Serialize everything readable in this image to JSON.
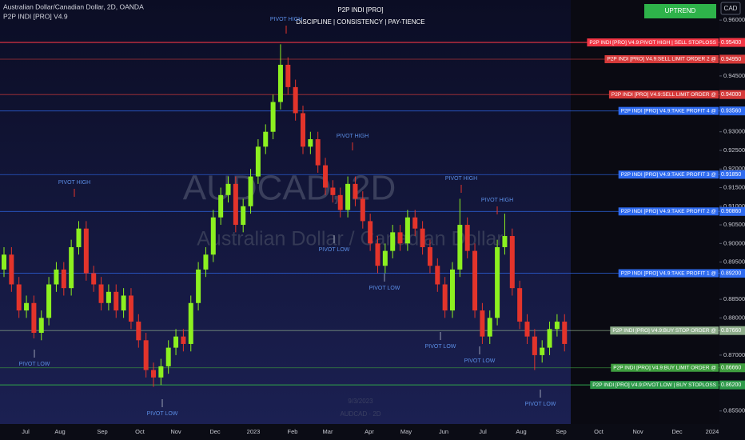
{
  "chart_data": {
    "type": "candlestick",
    "symbol_title": "Australian Dollar/Canadian Dollar, 2D, OANDA",
    "indicator_name": "P2P INDI [PRO] V4.9",
    "title": "P2P INDI [PRO]",
    "subtitle": "DISCIPLINE  |  CONSISTENCY  |  PAY-TIENCE",
    "trend_badge": "UPTREND",
    "currency": "CAD",
    "watermark": "AUDCAD, 2D",
    "watermark_sub": "Australian Dollar / Canadian Dollar",
    "watermark_date": "9/3/2023",
    "watermark_code": "AUDCAD · 2D",
    "up_color": "#8cf020",
    "down_color": "#e3342b",
    "ylim": [
      0.8515,
      0.9654
    ],
    "yticks": [
      {
        "value": 0.96,
        "label": "0.96000"
      },
      {
        "value": 0.945,
        "label": "0.94500"
      },
      {
        "value": 0.93,
        "label": "0.93000"
      },
      {
        "value": 0.925,
        "label": "0.92500"
      },
      {
        "value": 0.92,
        "label": "0.92000"
      },
      {
        "value": 0.915,
        "label": "0.91500"
      },
      {
        "value": 0.91,
        "label": "0.91000"
      },
      {
        "value": 0.905,
        "label": "0.90500"
      },
      {
        "value": 0.9,
        "label": "0.90000"
      },
      {
        "value": 0.895,
        "label": "0.89500"
      },
      {
        "value": 0.885,
        "label": "0.88500"
      },
      {
        "value": 0.88,
        "label": "0.88000"
      },
      {
        "value": 0.87,
        "label": "0.87000"
      },
      {
        "value": 0.855,
        "label": "0.85500"
      }
    ],
    "x_labels": [
      "Jul",
      "Aug",
      "Sep",
      "Oct",
      "Nov",
      "Dec",
      "2023",
      "Feb",
      "Mar",
      "Apr",
      "May",
      "Jun",
      "Jul",
      "Aug",
      "Sep",
      "Oct",
      "Nov",
      "Dec",
      "2024"
    ],
    "candles": [
      [
        0.893,
        0.899,
        0.891,
        0.897
      ],
      [
        0.897,
        0.899,
        0.887,
        0.889
      ],
      [
        0.889,
        0.891,
        0.88,
        0.882
      ],
      [
        0.882,
        0.886,
        0.88,
        0.884
      ],
      [
        0.884,
        0.886,
        0.8745,
        0.876
      ],
      [
        0.876,
        0.882,
        0.874,
        0.88
      ],
      [
        0.88,
        0.891,
        0.878,
        0.889
      ],
      [
        0.889,
        0.895,
        0.887,
        0.893
      ],
      [
        0.893,
        0.895,
        0.886,
        0.888
      ],
      [
        0.888,
        0.901,
        0.886,
        0.899
      ],
      [
        0.899,
        0.906,
        0.897,
        0.904
      ],
      [
        0.904,
        0.906,
        0.89,
        0.892
      ],
      [
        0.892,
        0.894,
        0.887,
        0.889
      ],
      [
        0.889,
        0.891,
        0.882,
        0.884
      ],
      [
        0.884,
        0.889,
        0.882,
        0.887
      ],
      [
        0.887,
        0.889,
        0.88,
        0.882
      ],
      [
        0.882,
        0.888,
        0.88,
        0.886
      ],
      [
        0.886,
        0.888,
        0.877,
        0.879
      ],
      [
        0.879,
        0.881,
        0.872,
        0.874
      ],
      [
        0.874,
        0.876,
        0.864,
        0.866
      ],
      [
        0.866,
        0.868,
        0.8615,
        0.864
      ],
      [
        0.864,
        0.869,
        0.862,
        0.867
      ],
      [
        0.867,
        0.874,
        0.865,
        0.872
      ],
      [
        0.872,
        0.877,
        0.87,
        0.875
      ],
      [
        0.875,
        0.877,
        0.871,
        0.873
      ],
      [
        0.873,
        0.886,
        0.871,
        0.884
      ],
      [
        0.884,
        0.895,
        0.882,
        0.893
      ],
      [
        0.893,
        0.899,
        0.891,
        0.897
      ],
      [
        0.897,
        0.909,
        0.895,
        0.907
      ],
      [
        0.907,
        0.915,
        0.905,
        0.913
      ],
      [
        0.913,
        0.918,
        0.911,
        0.916
      ],
      [
        0.916,
        0.918,
        0.903,
        0.905
      ],
      [
        0.905,
        0.912,
        0.903,
        0.91
      ],
      [
        0.91,
        0.92,
        0.908,
        0.918
      ],
      [
        0.918,
        0.928,
        0.916,
        0.926
      ],
      [
        0.926,
        0.932,
        0.924,
        0.93
      ],
      [
        0.93,
        0.94,
        0.928,
        0.938
      ],
      [
        0.938,
        0.9535,
        0.936,
        0.948
      ],
      [
        0.948,
        0.95,
        0.94,
        0.942
      ],
      [
        0.942,
        0.944,
        0.933,
        0.935
      ],
      [
        0.935,
        0.937,
        0.924,
        0.926
      ],
      [
        0.926,
        0.93,
        0.924,
        0.928
      ],
      [
        0.928,
        0.93,
        0.919,
        0.921
      ],
      [
        0.921,
        0.923,
        0.913,
        0.915
      ],
      [
        0.915,
        0.917,
        0.911,
        0.913
      ],
      [
        0.913,
        0.915,
        0.907,
        0.909
      ],
      [
        0.909,
        0.918,
        0.907,
        0.916
      ],
      [
        0.916,
        0.918,
        0.91,
        0.912
      ],
      [
        0.912,
        0.914,
        0.904,
        0.906
      ],
      [
        0.906,
        0.908,
        0.898,
        0.9
      ],
      [
        0.9,
        0.902,
        0.892,
        0.894
      ],
      [
        0.894,
        0.9,
        0.892,
        0.898
      ],
      [
        0.898,
        0.905,
        0.896,
        0.903
      ],
      [
        0.903,
        0.905,
        0.898,
        0.9
      ],
      [
        0.9,
        0.909,
        0.898,
        0.907
      ],
      [
        0.907,
        0.909,
        0.902,
        0.904
      ],
      [
        0.904,
        0.906,
        0.897,
        0.899
      ],
      [
        0.899,
        0.901,
        0.892,
        0.894
      ],
      [
        0.894,
        0.896,
        0.887,
        0.889
      ],
      [
        0.889,
        0.891,
        0.88,
        0.882
      ],
      [
        0.882,
        0.895,
        0.88,
        0.893
      ],
      [
        0.893,
        0.912,
        0.891,
        0.905
      ],
      [
        0.905,
        0.907,
        0.896,
        0.898
      ],
      [
        0.898,
        0.9,
        0.88,
        0.882
      ],
      [
        0.882,
        0.884,
        0.873,
        0.875
      ],
      [
        0.875,
        0.882,
        0.873,
        0.88
      ],
      [
        0.88,
        0.901,
        0.878,
        0.899
      ],
      [
        0.899,
        0.908,
        0.897,
        0.902
      ],
      [
        0.902,
        0.904,
        0.886,
        0.888
      ],
      [
        0.888,
        0.89,
        0.877,
        0.879
      ],
      [
        0.879,
        0.881,
        0.873,
        0.875
      ],
      [
        0.875,
        0.877,
        0.866,
        0.87
      ],
      [
        0.87,
        0.874,
        0.868,
        0.872
      ],
      [
        0.872,
        0.879,
        0.87,
        0.877
      ],
      [
        0.877,
        0.881,
        0.875,
        0.879
      ],
      [
        0.879,
        0.881,
        0.871,
        0.873
      ]
    ],
    "levels": [
      {
        "label": "P2P INDI [PRO] V4.9:PIVOT HIGH | SELL STOPLOSS",
        "value": 0.954,
        "value_label": "0.95400",
        "color": "#f23645"
      },
      {
        "label": "P2P INDI [PRO] V4.9:SELL LIMIT ORDER 2 @",
        "value": 0.9495,
        "value_label": "0.94950",
        "color": "#d63a3a"
      },
      {
        "label": "P2P INDI [PRO] V4.9:SELL LIMIT ORDER @",
        "value": 0.94,
        "value_label": "0.94000",
        "color": "#d63a3a"
      },
      {
        "label": "P2P INDI [PRO] V4.9:TAKE PROFIT 4 @",
        "value": 0.9356,
        "value_label": "0.93560",
        "color": "#2f6bf0"
      },
      {
        "label": "P2P INDI [PRO] V4.9:TAKE PROFIT 3 @",
        "value": 0.9185,
        "value_label": "0.91850",
        "color": "#2f6bf0"
      },
      {
        "label": "P2P INDI [PRO] V4.9:TAKE PROFIT 2 @",
        "value": 0.9086,
        "value_label": "0.90860",
        "color": "#2f6bf0"
      },
      {
        "label": "P2P INDI [PRO] V4.9:TAKE PROFIT 1 @",
        "value": 0.892,
        "value_label": "0.89200",
        "color": "#2f6bf0"
      },
      {
        "label": "P2P INDI [PRO] V4.9:BUY STOP ORDER @",
        "value": 0.8766,
        "value_label": "0.87660",
        "color": "#8fae8c"
      },
      {
        "label": "P2P INDI [PRO] V4.9:BUY LIMIT ORDER @",
        "value": 0.8666,
        "value_label": "0.86660",
        "color": "#3f9e3f"
      },
      {
        "label": "P2P INDI [PRO] V4.9:PIVOT LOW | BUY STOPLOSS",
        "value": 0.862,
        "value_label": "0.86200",
        "color": "#2e9a4a"
      }
    ],
    "annotations": [
      "PIVOT HIGH",
      "PIVOT HIGH",
      "PIVOT HIGH",
      "PIVOT HIGH",
      "PIVOT HIGH",
      "PIVOT LOW",
      "PIVOT LOW",
      "PIVOT LOW",
      "PIVOT LOW",
      "PIVOT LOW",
      "PIVOT LOW",
      "PIVOT LOW"
    ]
  }
}
